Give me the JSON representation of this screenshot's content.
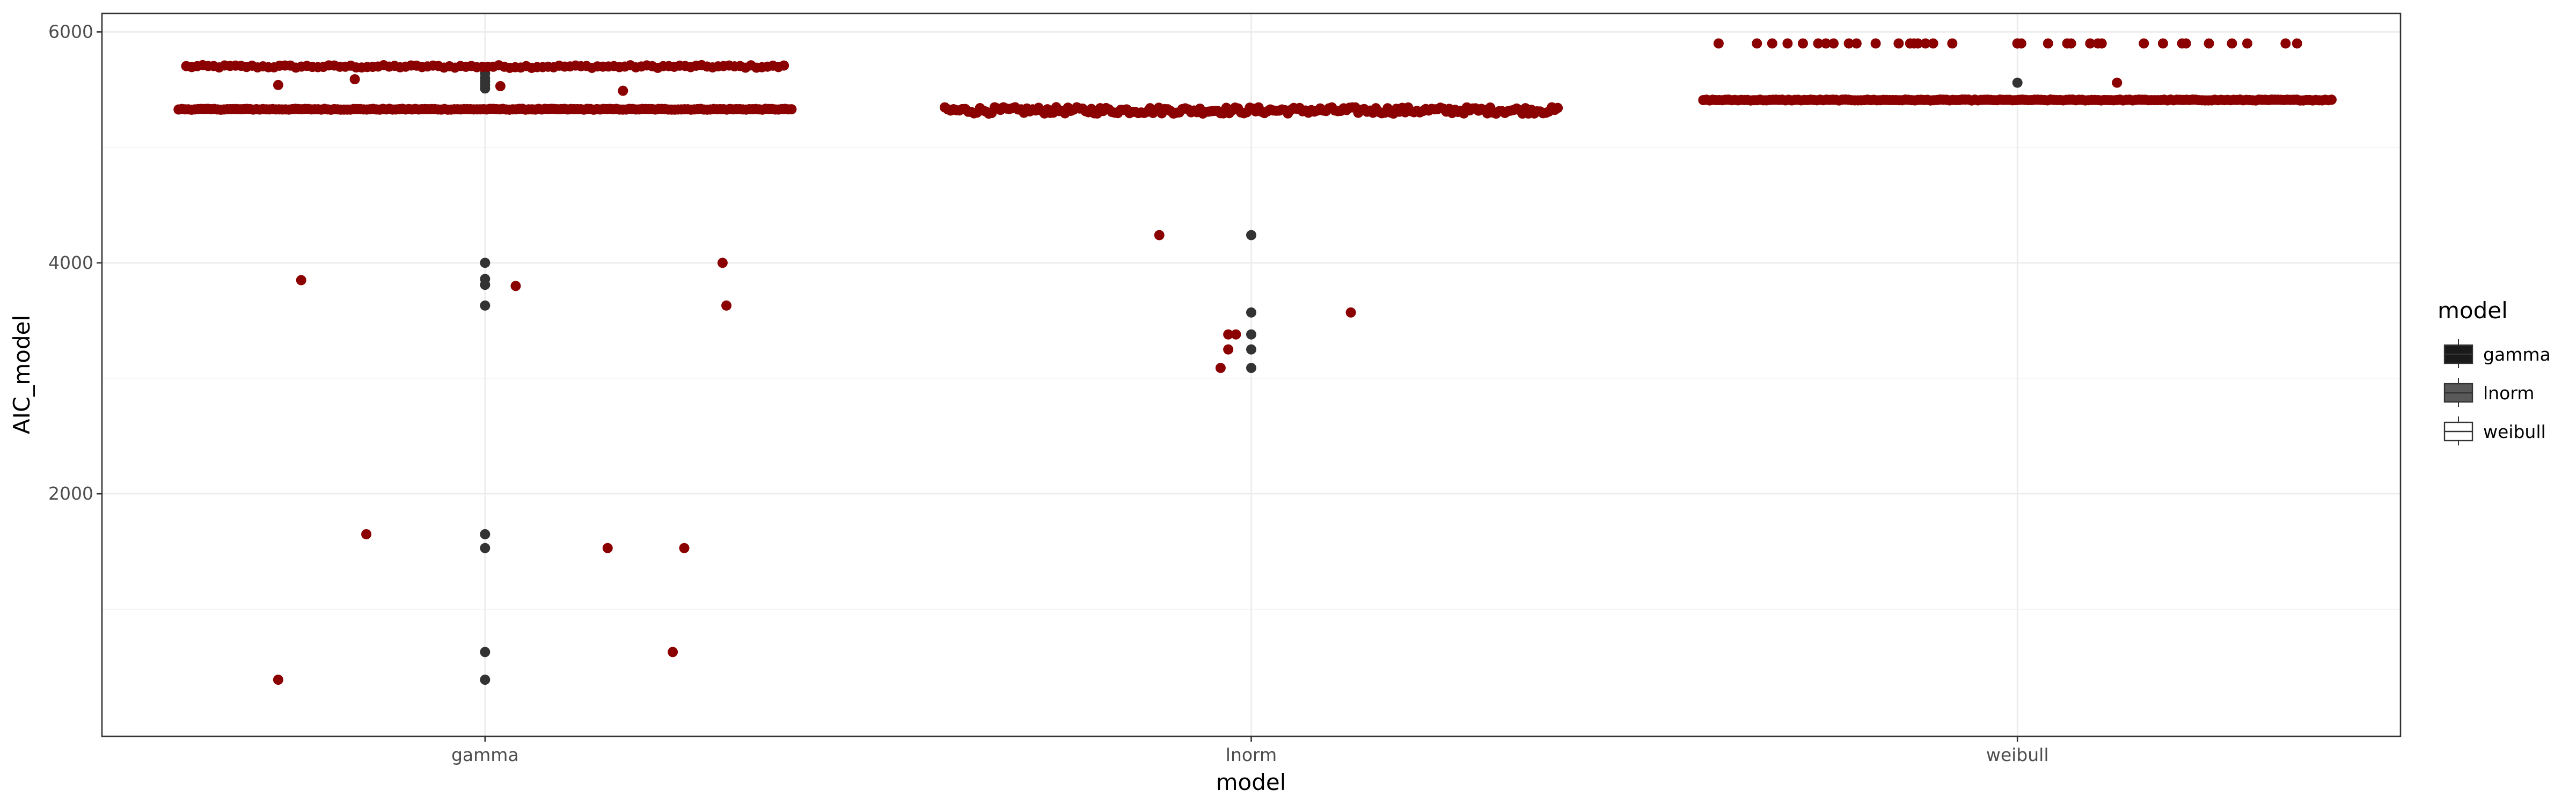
{
  "chart_data": {
    "type": "scatter",
    "title": "",
    "xlabel": "model",
    "ylabel": "AIC_model",
    "categories": [
      "gamma",
      "lnorm",
      "weibull"
    ],
    "y_ticks": [
      2000,
      4000,
      6000
    ],
    "ylim": [
      -100,
      6160
    ],
    "grid": true,
    "legend": {
      "title": "model",
      "position": "right",
      "entries": [
        {
          "label": "gamma",
          "fill": "#1a1a1a"
        },
        {
          "label": "lnorm",
          "fill": "#595959"
        },
        {
          "label": "weibull",
          "fill": "#ffffff"
        }
      ]
    },
    "colors": {
      "jitter_points": "#8b0000",
      "outlier_points": "#333333",
      "grid_major": "#ebebeb",
      "grid_minor": "#f2f2f2",
      "panel_border": "#333333"
    },
    "series": [
      {
        "category": "gamma",
        "dense_bands": [
          {
            "y": 5700,
            "count": 110,
            "jitter": 0.39,
            "spread": 12
          },
          {
            "y": 5330,
            "count": 190,
            "jitter": 0.4,
            "spread": 4
          }
        ],
        "jitter_points": [
          {
            "x_offset": -0.27,
            "y": 5540
          },
          {
            "x_offset": -0.17,
            "y": 5590
          },
          {
            "x_offset": 0.02,
            "y": 5530
          },
          {
            "x_offset": 0.18,
            "y": 5490
          },
          {
            "x_offset": -0.24,
            "y": 3850
          },
          {
            "x_offset": 0.04,
            "y": 3800
          },
          {
            "x_offset": 0.31,
            "y": 4000
          },
          {
            "x_offset": 0.315,
            "y": 3630
          },
          {
            "x_offset": -0.155,
            "y": 1650
          },
          {
            "x_offset": 0.16,
            "y": 1530
          },
          {
            "x_offset": 0.26,
            "y": 1530
          },
          {
            "x_offset": 0.245,
            "y": 630
          },
          {
            "x_offset": -0.27,
            "y": 390
          }
        ],
        "outliers": [
          5680,
          5640,
          5600,
          5570,
          5540,
          5510,
          4000,
          3860,
          3810,
          3630,
          1650,
          1530,
          630,
          390
        ]
      },
      {
        "category": "lnorm",
        "dense_bands": [
          {
            "y": 5320,
            "count": 210,
            "jitter": 0.4,
            "spread": 28
          }
        ],
        "jitter_points": [
          {
            "x_offset": -0.12,
            "y": 4240
          },
          {
            "x_offset": 0.13,
            "y": 3570
          },
          {
            "x_offset": -0.03,
            "y": 3380
          },
          {
            "x_offset": -0.02,
            "y": 3380
          },
          {
            "x_offset": -0.03,
            "y": 3250
          },
          {
            "x_offset": -0.04,
            "y": 3090
          }
        ],
        "outliers": [
          4240,
          3570,
          3380,
          3250,
          3090
        ]
      },
      {
        "category": "weibull",
        "dense_bands": [
          {
            "y": 5410,
            "count": 200,
            "jitter": 0.41,
            "spread": 4
          }
        ],
        "jitter_points": [
          {
            "x_offset": -0.39,
            "y": 5900
          },
          {
            "x_offset": -0.34,
            "y": 5900
          },
          {
            "x_offset": -0.32,
            "y": 5900
          },
          {
            "x_offset": -0.3,
            "y": 5900
          },
          {
            "x_offset": -0.28,
            "y": 5900
          },
          {
            "x_offset": -0.26,
            "y": 5900
          },
          {
            "x_offset": -0.25,
            "y": 5900
          },
          {
            "x_offset": -0.24,
            "y": 5900
          },
          {
            "x_offset": -0.22,
            "y": 5900
          },
          {
            "x_offset": -0.21,
            "y": 5900
          },
          {
            "x_offset": -0.185,
            "y": 5900
          },
          {
            "x_offset": -0.155,
            "y": 5900
          },
          {
            "x_offset": -0.14,
            "y": 5900
          },
          {
            "x_offset": -0.135,
            "y": 5900
          },
          {
            "x_offset": -0.13,
            "y": 5900
          },
          {
            "x_offset": -0.12,
            "y": 5900
          },
          {
            "x_offset": -0.11,
            "y": 5900
          },
          {
            "x_offset": -0.085,
            "y": 5900
          },
          {
            "x_offset": 0.0,
            "y": 5900
          },
          {
            "x_offset": 0.005,
            "y": 5900
          },
          {
            "x_offset": 0.04,
            "y": 5900
          },
          {
            "x_offset": 0.065,
            "y": 5900
          },
          {
            "x_offset": 0.07,
            "y": 5900
          },
          {
            "x_offset": 0.095,
            "y": 5900
          },
          {
            "x_offset": 0.105,
            "y": 5900
          },
          {
            "x_offset": 0.11,
            "y": 5900
          },
          {
            "x_offset": 0.165,
            "y": 5900
          },
          {
            "x_offset": 0.19,
            "y": 5900
          },
          {
            "x_offset": 0.215,
            "y": 5900
          },
          {
            "x_offset": 0.22,
            "y": 5900
          },
          {
            "x_offset": 0.25,
            "y": 5900
          },
          {
            "x_offset": 0.28,
            "y": 5900
          },
          {
            "x_offset": 0.3,
            "y": 5900
          },
          {
            "x_offset": 0.35,
            "y": 5900
          },
          {
            "x_offset": 0.365,
            "y": 5900
          },
          {
            "x_offset": 0.13,
            "y": 5560
          }
        ],
        "outliers": [
          5900,
          5560
        ]
      }
    ]
  }
}
